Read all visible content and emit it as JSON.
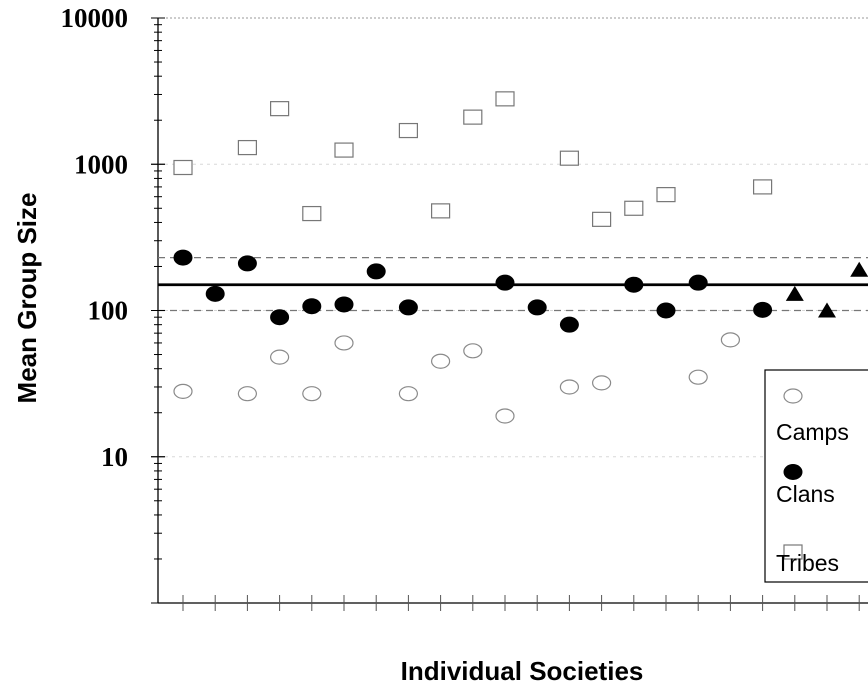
{
  "chart_data": {
    "type": "scatter",
    "title": "",
    "xlabel": "Individual Societies",
    "ylabel": "Mean Group Size",
    "y_scale": "log",
    "ylim": [
      1,
      10000
    ],
    "xlim": [
      0,
      21.5
    ],
    "y_ticks": [
      {
        "value": 10,
        "label": "10"
      },
      {
        "value": 100,
        "label": "100"
      },
      {
        "value": 1000,
        "label": "1000"
      },
      {
        "value": 10000,
        "label": "10000"
      }
    ],
    "reference_lines": [
      {
        "value": 150,
        "style": "solid"
      },
      {
        "value": 230,
        "style": "dashed"
      },
      {
        "value": 100,
        "style": "dashed"
      }
    ],
    "legend": {
      "placement": "right",
      "entries": [
        "Camps",
        "Clans",
        "Tribes"
      ]
    },
    "series": [
      {
        "name": "Camps",
        "marker": "open-circle",
        "points": [
          [
            1,
            28
          ],
          [
            3,
            27
          ],
          [
            4,
            48
          ],
          [
            5,
            27
          ],
          [
            6,
            60
          ],
          [
            8,
            27
          ],
          [
            9,
            45
          ],
          [
            10,
            53
          ],
          [
            11,
            19
          ],
          [
            13,
            30
          ],
          [
            14,
            32
          ],
          [
            17,
            35
          ],
          [
            18,
            63
          ],
          [
            20,
            27
          ]
        ]
      },
      {
        "name": "Clans",
        "marker": "filled-circle",
        "points": [
          [
            1,
            230
          ],
          [
            2,
            130
          ],
          [
            3,
            210
          ],
          [
            4,
            90
          ],
          [
            5,
            107
          ],
          [
            6,
            110
          ],
          [
            7,
            185
          ],
          [
            8,
            105
          ],
          [
            11,
            155
          ],
          [
            12,
            105
          ],
          [
            13,
            80
          ],
          [
            15,
            150
          ],
          [
            16,
            100
          ],
          [
            17,
            155
          ],
          [
            19,
            101
          ]
        ]
      },
      {
        "name": "Tribes",
        "marker": "open-square",
        "points": [
          [
            1,
            950
          ],
          [
            3,
            1300
          ],
          [
            4,
            2400
          ],
          [
            5,
            460
          ],
          [
            6,
            1250
          ],
          [
            8,
            1700
          ],
          [
            9,
            480
          ],
          [
            10,
            2100
          ],
          [
            11,
            2800
          ],
          [
            13,
            1100
          ],
          [
            14,
            420
          ],
          [
            15,
            500
          ],
          [
            16,
            620
          ],
          [
            19,
            700
          ]
        ]
      },
      {
        "name": "",
        "marker": "filled-triangle",
        "points": [
          [
            20,
            130
          ],
          [
            21,
            100
          ],
          [
            22,
            190
          ]
        ]
      }
    ]
  }
}
